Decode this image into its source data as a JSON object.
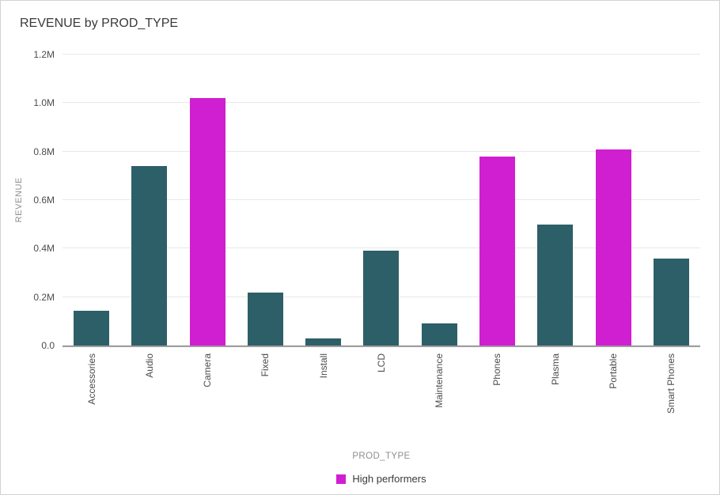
{
  "title": "REVENUE by PROD_TYPE",
  "chart_data": {
    "type": "bar",
    "title": "REVENUE by PROD_TYPE",
    "categories": [
      "Accessories",
      "Audio",
      "Camera",
      "Fixed",
      "Install",
      "LCD",
      "Maintenance",
      "Phones",
      "Plasma",
      "Portable",
      "Smart Phones"
    ],
    "values": [
      145000,
      740000,
      1020000,
      220000,
      30000,
      390000,
      90000,
      780000,
      500000,
      810000,
      360000
    ],
    "highlight": [
      false,
      false,
      true,
      false,
      false,
      false,
      false,
      true,
      false,
      true,
      false
    ],
    "xlabel": "PROD_TYPE",
    "ylabel": "REVENUE",
    "ylim": [
      0,
      1200000
    ],
    "yticks": [
      0,
      200000,
      400000,
      600000,
      800000,
      1000000,
      1200000
    ],
    "ytick_labels": [
      "0.0",
      "0.2M",
      "0.4M",
      "0.6M",
      "0.8M",
      "1.0M",
      "1.2M"
    ],
    "grid": true,
    "legend_position": "bottom",
    "colors": {
      "default": "#2d5f68",
      "highlight": "#d01fd0"
    },
    "legend": [
      {
        "label": "High performers",
        "color": "#d01fd0"
      }
    ]
  }
}
